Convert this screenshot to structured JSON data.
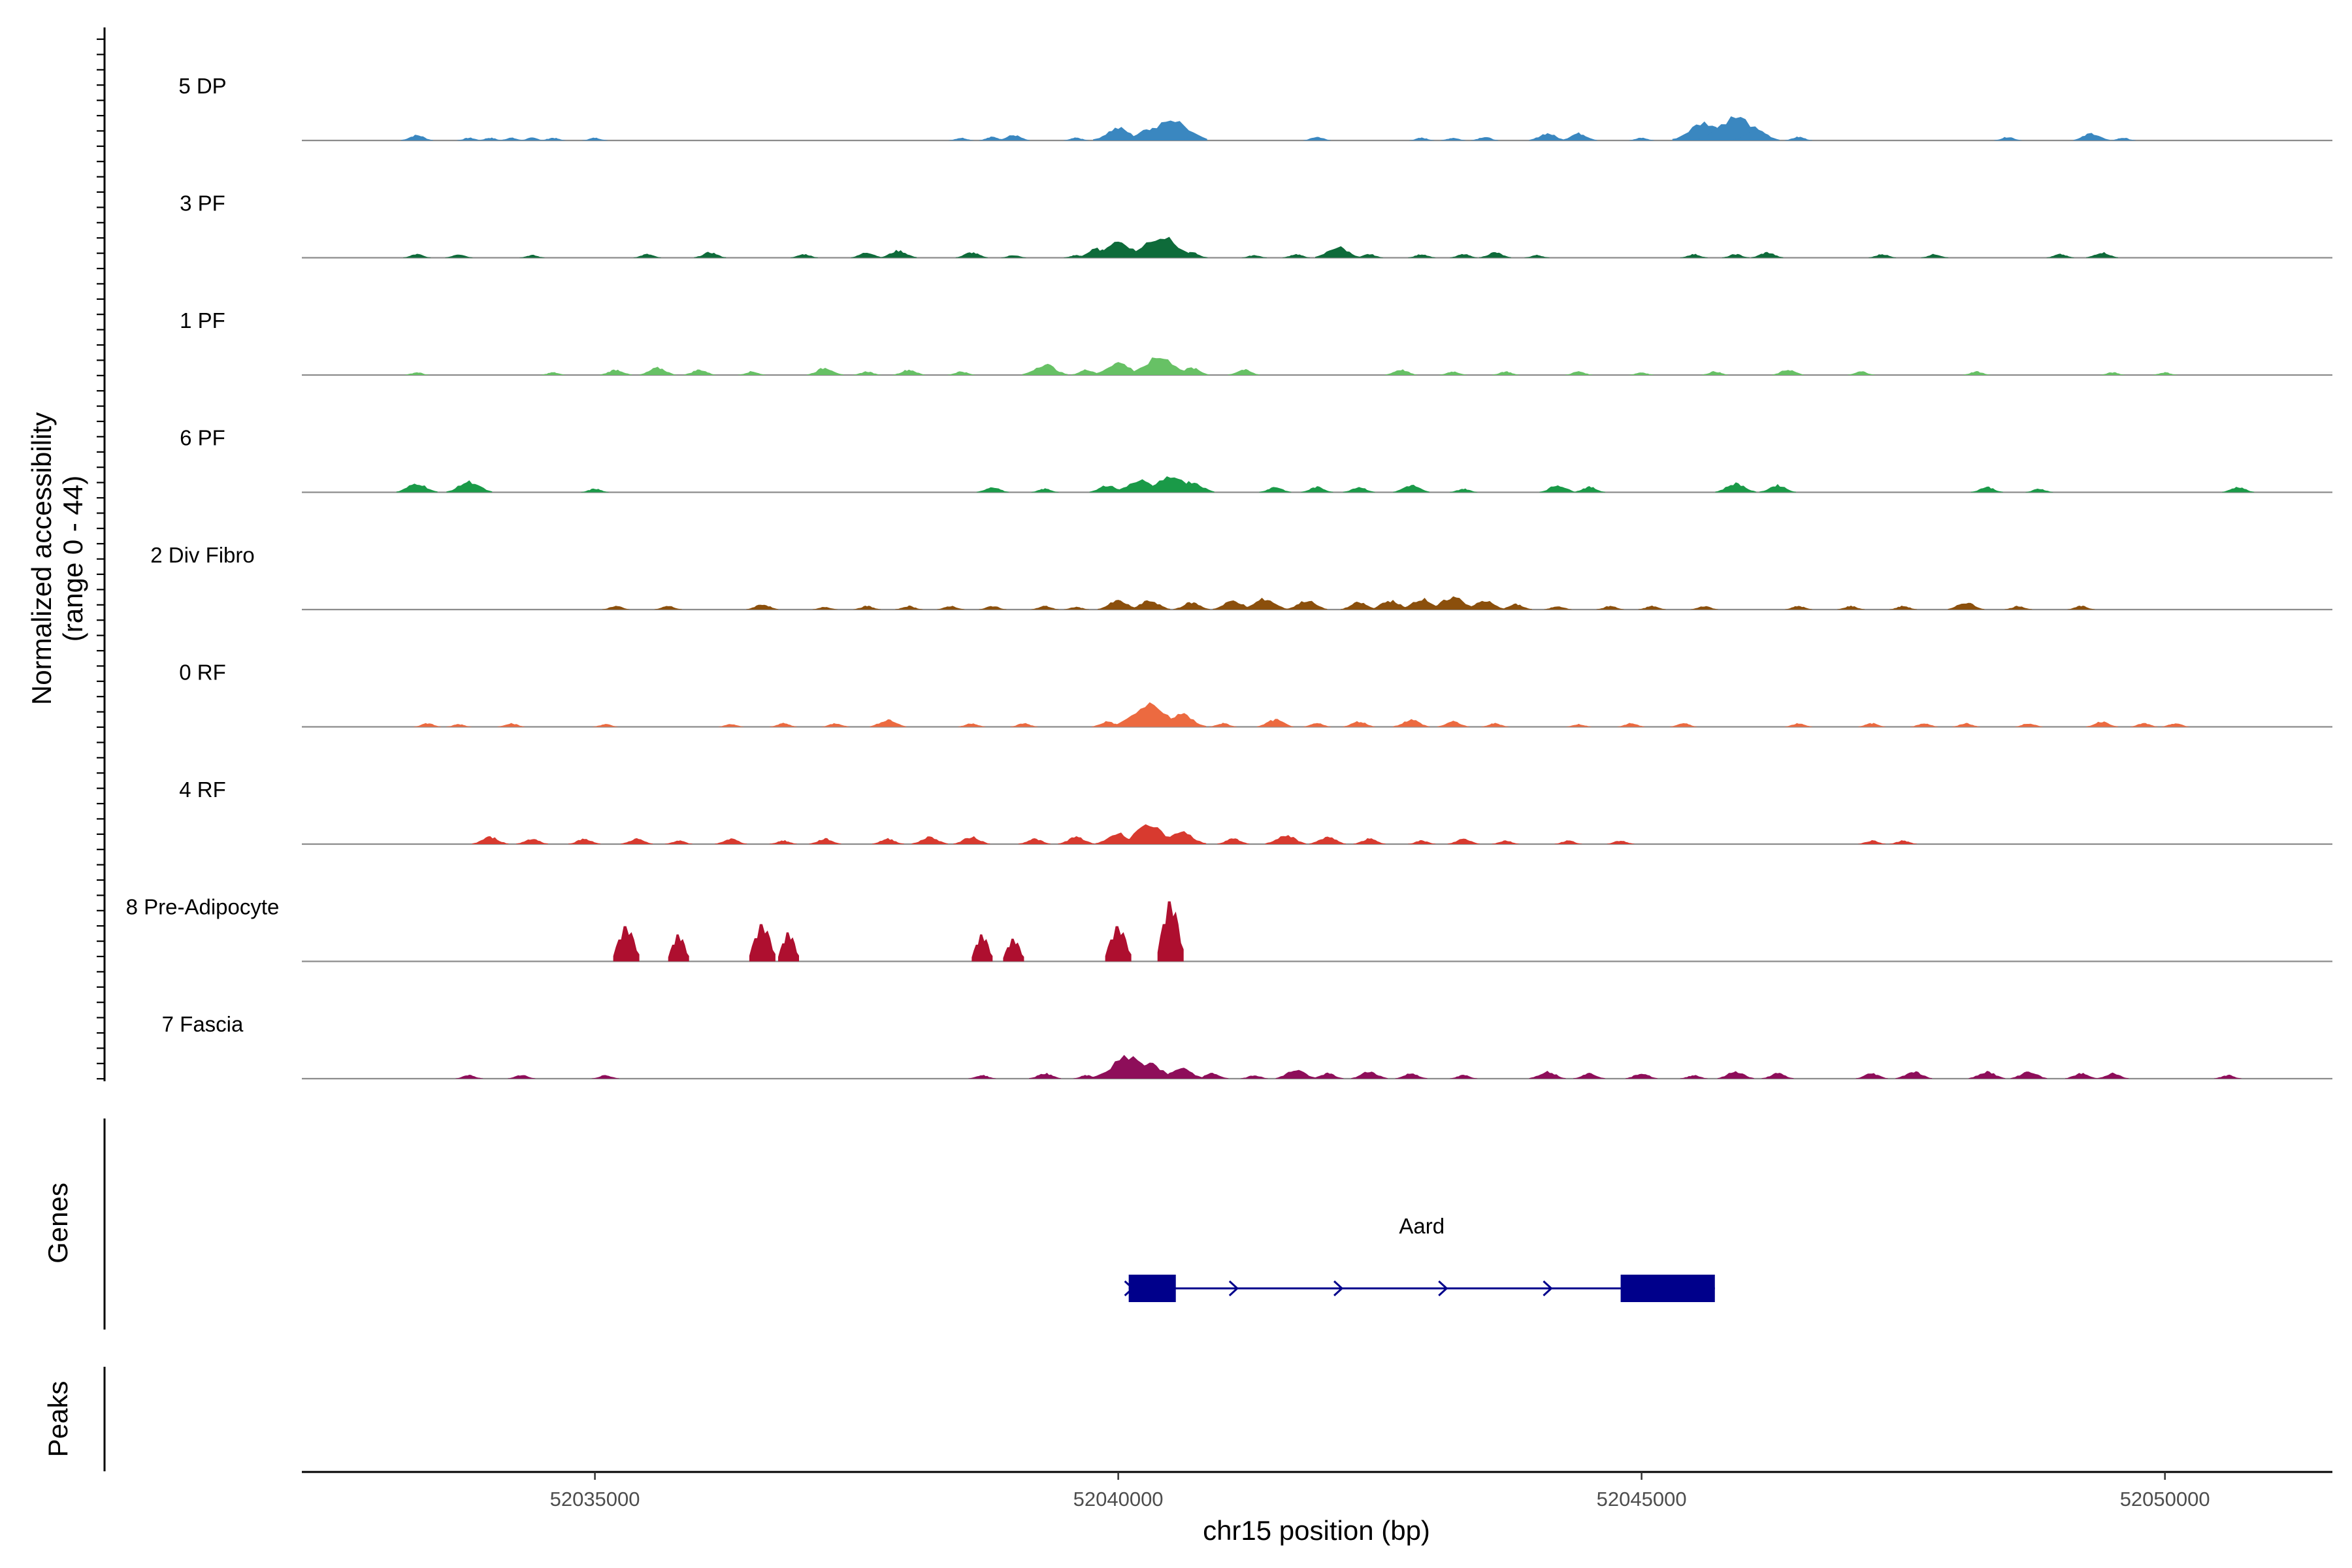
{
  "chart_data": {
    "type": "area",
    "title": "",
    "xlabel": "chr15 position (bp)",
    "ylabel_line1": "Normalized accessibility",
    "ylabel_line2": "(range 0 - 44)",
    "xlim": [
      52032200,
      52051600
    ],
    "ylim": [
      0,
      44
    ],
    "xticks": [
      52035000,
      52040000,
      52045000,
      52050000
    ],
    "xtick_labels": [
      "52035000",
      "52040000",
      "52045000",
      "52050000"
    ],
    "side_labels": {
      "genes": "Genes",
      "peaks": "Peaks"
    },
    "series": [
      {
        "name": "5 DP",
        "color": "#3a87c0",
        "peaks": [
          [
            52033300,
            3
          ],
          [
            52033800,
            1.5
          ],
          [
            52034000,
            1.5
          ],
          [
            52034200,
            1.5
          ],
          [
            52034400,
            1.5
          ],
          [
            52034600,
            1.5
          ],
          [
            52035000,
            1.5
          ],
          [
            52038500,
            1.5
          ],
          [
            52038800,
            2
          ],
          [
            52039000,
            3
          ],
          [
            52039600,
            1.5
          ],
          [
            52039900,
            2
          ],
          [
            52040000,
            7
          ],
          [
            52040300,
            7
          ],
          [
            52040500,
            12
          ],
          [
            52040700,
            2
          ],
          [
            52041900,
            2
          ],
          [
            52042900,
            1.5
          ],
          [
            52043200,
            1.5
          ],
          [
            52043500,
            2
          ],
          [
            52044100,
            4
          ],
          [
            52044400,
            4
          ],
          [
            52045000,
            1.5
          ],
          [
            52045600,
            10
          ],
          [
            52045900,
            13
          ],
          [
            52046100,
            6
          ],
          [
            52046500,
            2
          ],
          [
            52048500,
            2
          ],
          [
            52049300,
            4
          ],
          [
            52049600,
            1.5
          ]
        ]
      },
      {
        "name": "3 PF",
        "color": "#0e6b3a",
        "peaks": [
          [
            52033300,
            2
          ],
          [
            52033700,
            2
          ],
          [
            52034400,
            1.5
          ],
          [
            52035500,
            2
          ],
          [
            52036100,
            3
          ],
          [
            52037000,
            2
          ],
          [
            52037600,
            3
          ],
          [
            52037900,
            4
          ],
          [
            52038600,
            3
          ],
          [
            52039000,
            1.5
          ],
          [
            52039600,
            1.5
          ],
          [
            52039800,
            5
          ],
          [
            52040000,
            9
          ],
          [
            52040400,
            12
          ],
          [
            52040700,
            3
          ],
          [
            52041300,
            1.5
          ],
          [
            52041700,
            2
          ],
          [
            52042100,
            6
          ],
          [
            52042400,
            2
          ],
          [
            52042900,
            2
          ],
          [
            52043300,
            2
          ],
          [
            52043600,
            3
          ],
          [
            52044000,
            1.5
          ],
          [
            52045500,
            2
          ],
          [
            52045900,
            2
          ],
          [
            52046200,
            3
          ],
          [
            52047300,
            2
          ],
          [
            52047800,
            2
          ],
          [
            52049000,
            2
          ],
          [
            52049400,
            3
          ]
        ]
      },
      {
        "name": "1 PF",
        "color": "#67c165",
        "peaks": [
          [
            52033300,
            1.5
          ],
          [
            52034600,
            1.5
          ],
          [
            52035200,
            3
          ],
          [
            52035600,
            4
          ],
          [
            52036000,
            3
          ],
          [
            52036500,
            2
          ],
          [
            52037200,
            4
          ],
          [
            52037600,
            2
          ],
          [
            52038000,
            3
          ],
          [
            52038500,
            2
          ],
          [
            52039300,
            6
          ],
          [
            52039700,
            3
          ],
          [
            52040000,
            7
          ],
          [
            52040400,
            10
          ],
          [
            52040700,
            4
          ],
          [
            52041200,
            3
          ],
          [
            52042700,
            3
          ],
          [
            52043200,
            2
          ],
          [
            52043700,
            2
          ],
          [
            52044400,
            2
          ],
          [
            52045000,
            1.5
          ],
          [
            52045700,
            2
          ],
          [
            52046400,
            3
          ],
          [
            52047100,
            2
          ],
          [
            52048200,
            2
          ],
          [
            52049500,
            1.5
          ],
          [
            52050000,
            1.5
          ]
        ]
      },
      {
        "name": "6 PF",
        "color": "#1a9a48",
        "peaks": [
          [
            52033300,
            5
          ],
          [
            52033800,
            6
          ],
          [
            52035000,
            2
          ],
          [
            52038800,
            3
          ],
          [
            52039300,
            2
          ],
          [
            52039900,
            4
          ],
          [
            52040200,
            7
          ],
          [
            52040500,
            9
          ],
          [
            52040700,
            6
          ],
          [
            52041500,
            3
          ],
          [
            52041900,
            3
          ],
          [
            52042300,
            3
          ],
          [
            52042800,
            4
          ],
          [
            52043300,
            2
          ],
          [
            52044200,
            4
          ],
          [
            52044500,
            3
          ],
          [
            52045900,
            5
          ],
          [
            52046300,
            4
          ],
          [
            52048300,
            3
          ],
          [
            52048800,
            2
          ],
          [
            52050700,
            3
          ]
        ]
      },
      {
        "name": "2 Div Fibro",
        "color": "#8b4f0c",
        "peaks": [
          [
            52035200,
            2
          ],
          [
            52035700,
            2
          ],
          [
            52036600,
            3
          ],
          [
            52037200,
            1.5
          ],
          [
            52037600,
            2
          ],
          [
            52038000,
            2
          ],
          [
            52038400,
            2
          ],
          [
            52038800,
            2
          ],
          [
            52039300,
            2
          ],
          [
            52039600,
            1.5
          ],
          [
            52040000,
            5
          ],
          [
            52040300,
            5
          ],
          [
            52040700,
            4
          ],
          [
            52041100,
            5
          ],
          [
            52041400,
            6
          ],
          [
            52041800,
            5
          ],
          [
            52042300,
            4
          ],
          [
            52042600,
            5
          ],
          [
            52042900,
            6
          ],
          [
            52043200,
            7
          ],
          [
            52043500,
            5
          ],
          [
            52043800,
            3
          ],
          [
            52044200,
            2
          ],
          [
            52044700,
            2
          ],
          [
            52045100,
            2
          ],
          [
            52045600,
            2
          ],
          [
            52046500,
            2
          ],
          [
            52047000,
            2
          ],
          [
            52047500,
            2
          ],
          [
            52048100,
            4
          ],
          [
            52048600,
            2
          ],
          [
            52049200,
            2
          ]
        ]
      },
      {
        "name": "0 RF",
        "color": "#ec6a40",
        "peaks": [
          [
            52033400,
            2
          ],
          [
            52033700,
            1.5
          ],
          [
            52034200,
            2
          ],
          [
            52035100,
            1.5
          ],
          [
            52036300,
            1.5
          ],
          [
            52036800,
            2
          ],
          [
            52037300,
            2
          ],
          [
            52037800,
            4
          ],
          [
            52038600,
            2
          ],
          [
            52039100,
            2
          ],
          [
            52039900,
            3
          ],
          [
            52040300,
            12
          ],
          [
            52040600,
            7
          ],
          [
            52041000,
            2
          ],
          [
            52041500,
            4
          ],
          [
            52041900,
            2
          ],
          [
            52042300,
            3
          ],
          [
            52042800,
            4
          ],
          [
            52043200,
            3
          ],
          [
            52043600,
            2
          ],
          [
            52044400,
            1.5
          ],
          [
            52044900,
            2
          ],
          [
            52045400,
            2
          ],
          [
            52046500,
            2
          ],
          [
            52047200,
            2
          ],
          [
            52047700,
            2
          ],
          [
            52048100,
            2
          ],
          [
            52048700,
            2
          ],
          [
            52049400,
            3
          ],
          [
            52049800,
            2
          ],
          [
            52050100,
            2
          ]
        ]
      },
      {
        "name": "4 RF",
        "color": "#d83a2f",
        "peaks": [
          [
            52034000,
            4
          ],
          [
            52034400,
            3
          ],
          [
            52034900,
            3
          ],
          [
            52035400,
            3
          ],
          [
            52035800,
            2
          ],
          [
            52036300,
            3
          ],
          [
            52036800,
            2
          ],
          [
            52037200,
            3
          ],
          [
            52037800,
            3
          ],
          [
            52038200,
            4
          ],
          [
            52038600,
            4
          ],
          [
            52039200,
            3
          ],
          [
            52039600,
            4
          ],
          [
            52040000,
            6
          ],
          [
            52040300,
            10
          ],
          [
            52040600,
            7
          ],
          [
            52041100,
            3
          ],
          [
            52041600,
            5
          ],
          [
            52042000,
            4
          ],
          [
            52042400,
            3
          ],
          [
            52042900,
            2
          ],
          [
            52043300,
            3
          ],
          [
            52043700,
            2
          ],
          [
            52044300,
            2
          ],
          [
            52044800,
            2
          ],
          [
            52047200,
            2
          ],
          [
            52047500,
            2
          ]
        ]
      },
      {
        "name": "8 Pre-Adipocyte",
        "color": "#ae0f2f",
        "peaks": [
          [
            52035300,
            17
          ],
          [
            52035800,
            13
          ],
          [
            52036600,
            18
          ],
          [
            52036850,
            14
          ],
          [
            52038700,
            13
          ],
          [
            52039000,
            11
          ],
          [
            52040000,
            17
          ],
          [
            52040500,
            29
          ]
        ]
      },
      {
        "name": "7 Fascia",
        "color": "#8e0e5a",
        "peaks": [
          [
            52033800,
            2
          ],
          [
            52034300,
            2
          ],
          [
            52035100,
            2
          ],
          [
            52038700,
            2
          ],
          [
            52039300,
            3
          ],
          [
            52039700,
            2
          ],
          [
            52039900,
            2
          ],
          [
            52040100,
            12
          ],
          [
            52040300,
            8
          ],
          [
            52040600,
            6
          ],
          [
            52040900,
            3
          ],
          [
            52041300,
            2
          ],
          [
            52041700,
            5
          ],
          [
            52042000,
            3
          ],
          [
            52042400,
            4
          ],
          [
            52042800,
            3
          ],
          [
            52043300,
            2
          ],
          [
            52044100,
            4
          ],
          [
            52044500,
            3
          ],
          [
            52045000,
            3
          ],
          [
            52045500,
            2
          ],
          [
            52045900,
            4
          ],
          [
            52046300,
            3
          ],
          [
            52047200,
            3
          ],
          [
            52047600,
            4
          ],
          [
            52048300,
            4
          ],
          [
            52048700,
            4
          ],
          [
            52049200,
            3
          ],
          [
            52049500,
            3
          ],
          [
            52050600,
            2
          ]
        ]
      }
    ],
    "genes": [
      {
        "name": "Aard",
        "start": 52040100,
        "end": 52045700,
        "strand": "+",
        "exons": [
          [
            52040100,
            52040550
          ],
          [
            52044800,
            52045700
          ]
        ],
        "color": "#00008b"
      }
    ]
  }
}
